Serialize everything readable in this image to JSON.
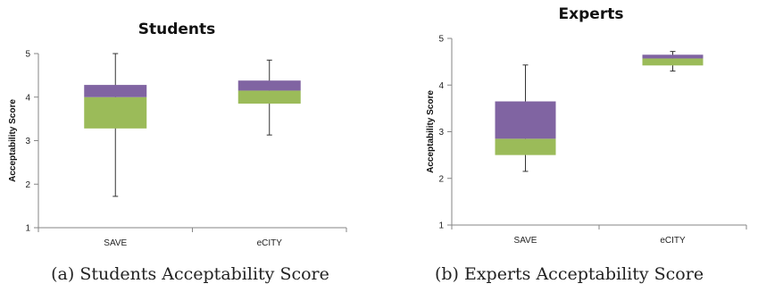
{
  "colors": {
    "upper": "#8064a2",
    "lower": "#9bbb59",
    "axis": "#868686",
    "grid": "#bfbfbf"
  },
  "chart_data": [
    {
      "type": "box",
      "title": "Students",
      "caption": "(a) Students Acceptability Score",
      "ylabel": "Acceptability Score",
      "ylim": [
        1,
        5
      ],
      "yticks": [
        "1",
        "2",
        "3",
        "4",
        "5"
      ],
      "categories": [
        "SAVE",
        "eCITY"
      ],
      "boxes": [
        {
          "category": "SAVE",
          "min": 1.72,
          "q1": 3.28,
          "median": 4.0,
          "q3": 4.28,
          "max": 5.0
        },
        {
          "category": "eCITY",
          "min": 3.13,
          "q1": 3.85,
          "median": 4.15,
          "q3": 4.38,
          "max": 4.85
        }
      ]
    },
    {
      "type": "box",
      "title": "Experts",
      "caption": "(b) Experts Acceptability Score",
      "ylabel": "Acceptability Score",
      "ylim": [
        1,
        5
      ],
      "yticks": [
        "1",
        "2",
        "3",
        "4",
        "5"
      ],
      "categories": [
        "SAVE",
        "eCITY"
      ],
      "boxes": [
        {
          "category": "SAVE",
          "min": 2.15,
          "q1": 2.5,
          "median": 2.85,
          "q3": 3.65,
          "max": 4.43
        },
        {
          "category": "eCITY",
          "min": 4.3,
          "q1": 4.42,
          "median": 4.57,
          "q3": 4.65,
          "max": 4.72
        }
      ]
    }
  ]
}
